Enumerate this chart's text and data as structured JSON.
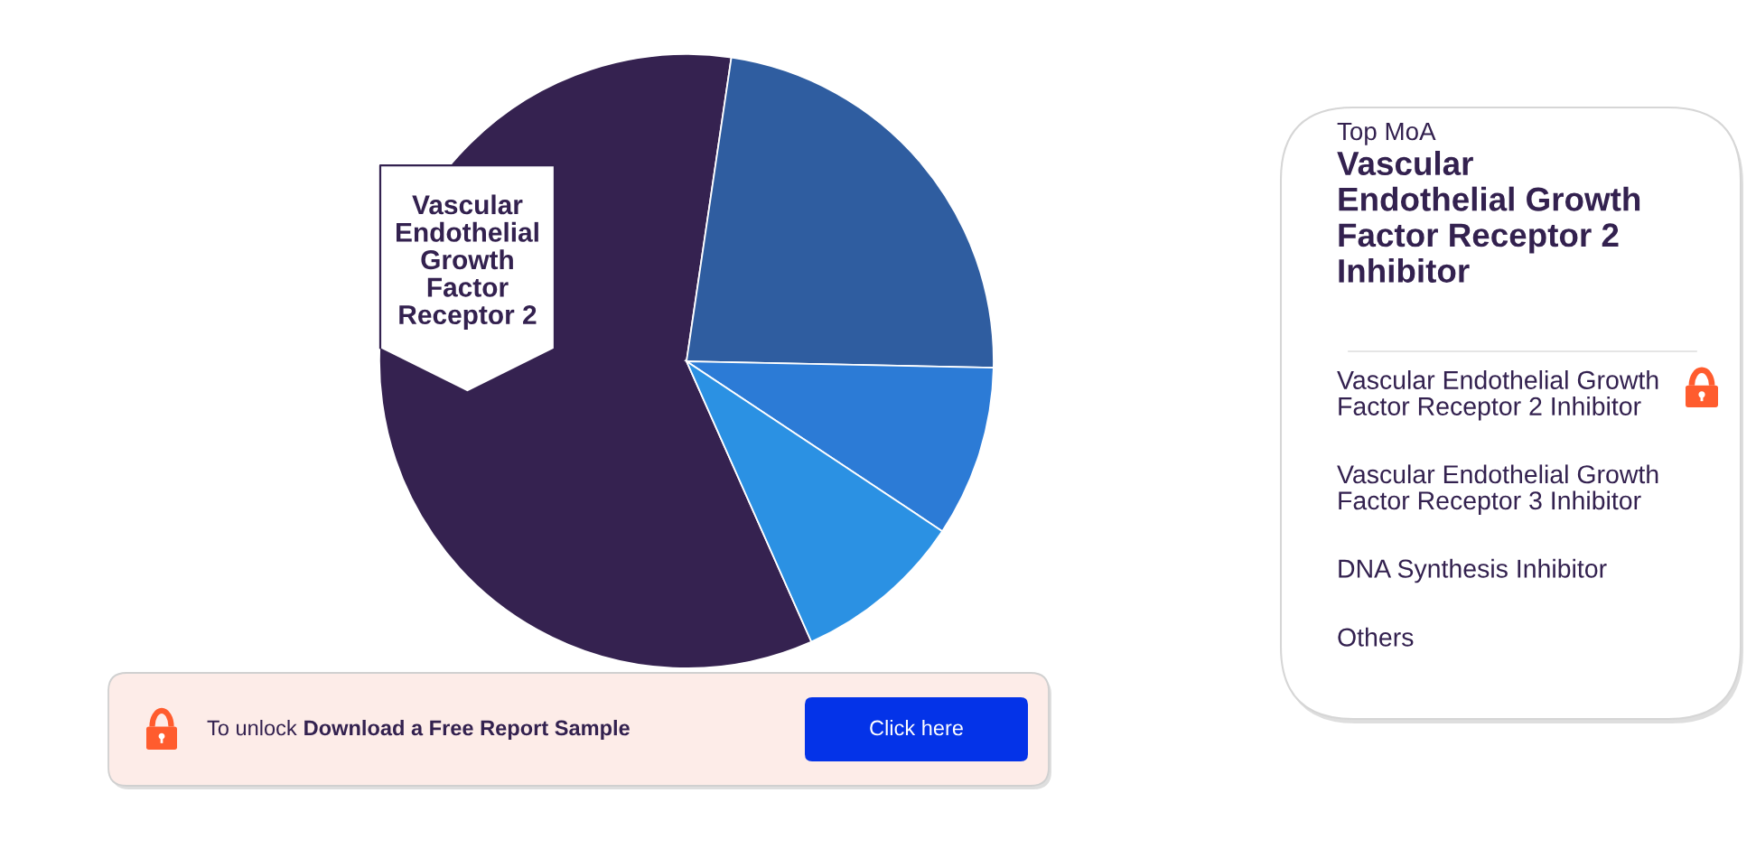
{
  "chart_data": {
    "type": "pie",
    "categories": [
      "Vascular Endothelial Growth Factor Receptor 2",
      null,
      null,
      null
    ],
    "values": [
      59,
      23,
      9,
      9
    ],
    "colors": [
      "#352250",
      "#2f5da0",
      "#2c7bd6",
      "#2b91e3"
    ],
    "annotations": [
      "Top MoA",
      "Vascular Endothelial Growth Factor Receptor 2 Inhibitor",
      "Vascular Endothelial Growth Factor Receptor 2 Inhibitor",
      "Vascular Endothelial Growth Factor Receptor 3 Inhibitor",
      "DNA Synthesis Inhibitor",
      "Others",
      "To unlock",
      "Download a Free Report Sample",
      "Click here"
    ]
  }
}
